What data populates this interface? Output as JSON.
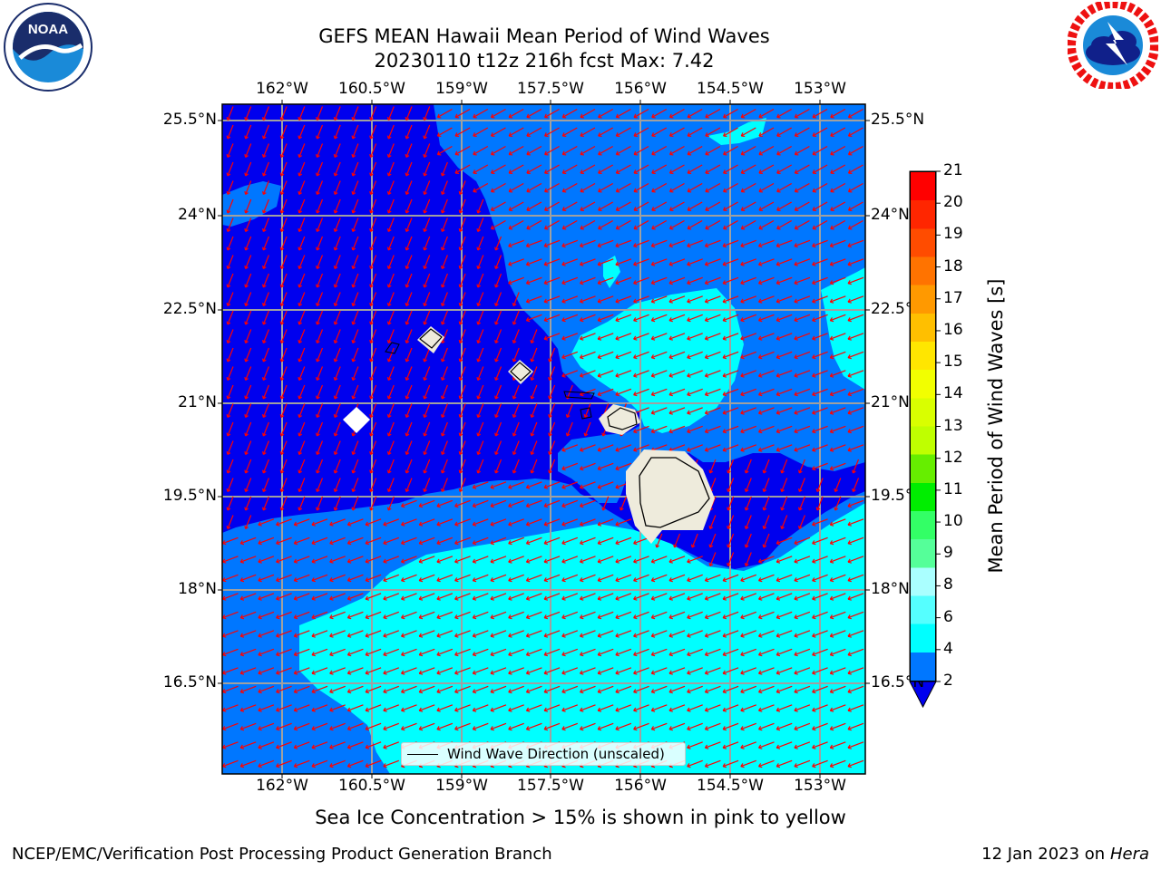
{
  "header": {
    "title_line1": "GEFS MEAN Hawaii Mean Period of Wind Waves",
    "title_line2": "20230110 t12z 216h fcst   Max: 7.42"
  },
  "logos": {
    "left": {
      "text": "NOAA",
      "ring_text": "NATIONAL OCEANIC AND ATMOSPHERIC ADMINISTRATION · U.S. DEPARTMENT OF COMMERCE"
    },
    "right": {
      "ring_text": "NATIONAL WEATHER SERVICE"
    }
  },
  "map": {
    "lon_labels": [
      "162°W",
      "160.5°W",
      "159°W",
      "157.5°W",
      "156°W",
      "154.5°W",
      "153°W"
    ],
    "lat_labels": [
      "25.5°N",
      "24°N",
      "22.5°N",
      "21°N",
      "19.5°N",
      "18°N",
      "16.5°N"
    ],
    "legend_label": "Wind Wave Direction (unscaled)",
    "colors": {
      "deep": "#0000ee",
      "mid": "#0077ff",
      "light": "#00ffff",
      "land": "#eeebdc",
      "arrow": "#ff0000",
      "grid": "#a0a0a0"
    }
  },
  "colorbar": {
    "label": "Mean Period of Wind Waves [s]",
    "ticks": [
      "21",
      "20",
      "19",
      "18",
      "17",
      "16",
      "15",
      "14",
      "13",
      "12",
      "11",
      "10",
      "9",
      "8",
      "6",
      "4",
      "2"
    ],
    "colors": [
      "#ff0000",
      "#ff2600",
      "#ff4c00",
      "#ff7300",
      "#ff9900",
      "#ffbf00",
      "#ffe600",
      "#f2ff00",
      "#d9ff00",
      "#bfff00",
      "#66ee00",
      "#00ee00",
      "#33ff66",
      "#55ff99",
      "#aaffff",
      "#55ffff",
      "#00ffff",
      "#0077ff"
    ],
    "under_color": "#0000ee"
  },
  "notes": {
    "sea_ice": "Sea Ice Concentration > 15% is shown in pink to yellow"
  },
  "footer": {
    "left": "NCEP/EMC/Verification Post Processing Product Generation Branch",
    "right_prefix": "12 Jan 2023 on ",
    "right_machine": "Hera"
  }
}
